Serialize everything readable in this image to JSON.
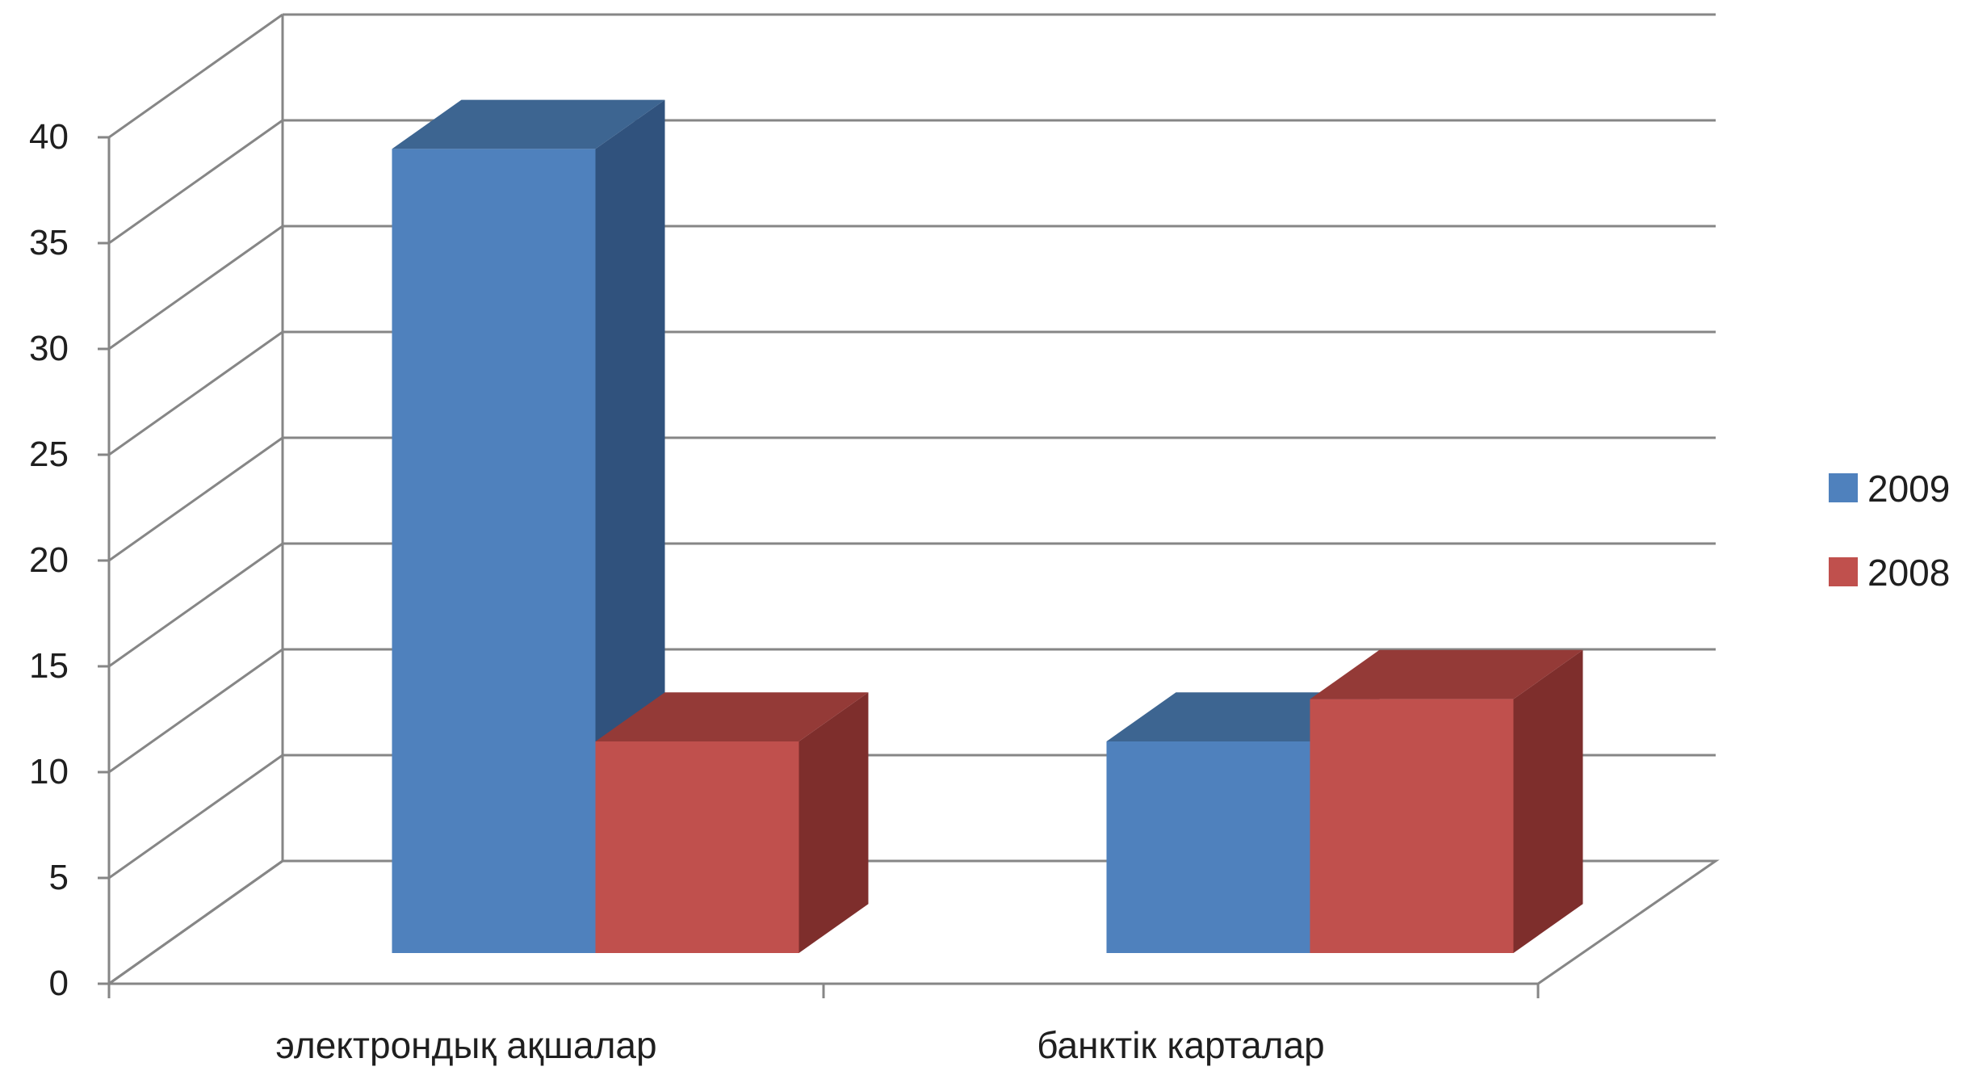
{
  "chart_data": {
    "type": "bar",
    "style": "3d-clustered-column",
    "categories": [
      "электрондық ақшалар",
      "банктік карталар"
    ],
    "series": [
      {
        "name": "2009",
        "values": [
          38,
          10
        ],
        "color": "#4F81BD",
        "side_color": "#30527D",
        "top_color": "#3D6591"
      },
      {
        "name": "2008",
        "values": [
          10,
          12
        ],
        "color": "#C0504D",
        "side_color": "#7E2E2C",
        "top_color": "#943A37"
      }
    ],
    "yticks": [
      0,
      5,
      10,
      15,
      20,
      25,
      30,
      35,
      40
    ],
    "ylim": [
      0,
      40
    ],
    "grid": true,
    "legend_position": "right"
  }
}
